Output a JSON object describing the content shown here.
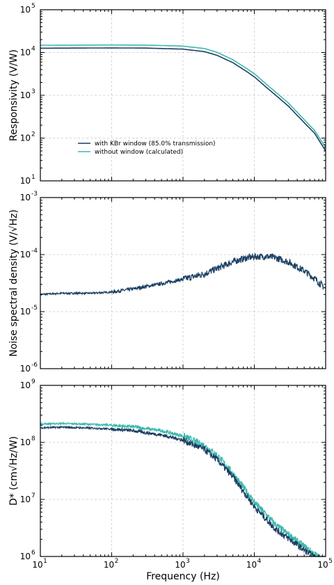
{
  "colors": {
    "dark": "#1b3f63",
    "teal": "#3cb8ac"
  },
  "xlabel": "Frequency (Hz)",
  "chart_data": [
    {
      "type": "line",
      "id": "responsivity",
      "ylabel": "Responsivity (V/W)",
      "xscale": "log",
      "yscale": "log",
      "xlim": [
        10,
        100000
      ],
      "ylim": [
        10,
        100000
      ],
      "grid": true,
      "legend_position": "lower-left",
      "series": [
        {
          "name": "with KBr window (85.0% transmission)",
          "color": "dark",
          "x": [
            10,
            100,
            300,
            1000,
            2000,
            3000,
            5000,
            8000,
            10000,
            15000,
            20000,
            30000,
            50000,
            70000,
            100000
          ],
          "y": [
            12600,
            12800,
            12700,
            12000,
            10500,
            8600,
            5800,
            3500,
            2700,
            1500,
            1000,
            560,
            230,
            130,
            50
          ]
        },
        {
          "name": "without window (calculated)",
          "color": "teal",
          "x": [
            10,
            100,
            300,
            1000,
            2000,
            3000,
            5000,
            8000,
            10000,
            15000,
            20000,
            30000,
            50000,
            70000,
            100000
          ],
          "y": [
            14800,
            15000,
            14900,
            14100,
            12400,
            10100,
            6800,
            4100,
            3200,
            1770,
            1180,
            660,
            270,
            150,
            60
          ]
        }
      ]
    },
    {
      "type": "line",
      "id": "noise",
      "ylabel": "Noise spectral density (V/√Hz)",
      "xscale": "log",
      "yscale": "log",
      "xlim": [
        10,
        100000
      ],
      "ylim": [
        1e-06,
        0.001
      ],
      "grid": true,
      "series": [
        {
          "name": "",
          "color": "dark",
          "x": [
            10,
            20,
            30,
            50,
            100,
            200,
            500,
            1000,
            2000,
            3000,
            5000,
            8000,
            10000,
            15000,
            20000,
            30000,
            50000,
            70000,
            100000
          ],
          "y": [
            2e-05,
            2.1e-05,
            2.1e-05,
            2.1e-05,
            2.2e-05,
            2.5e-05,
            3.1e-05,
            3.7e-05,
            4.6e-05,
            5.7e-05,
            7.5e-05,
            8.8e-05,
            9.2e-05,
            9.3e-05,
            8.8e-05,
            7.4e-05,
            5.2e-05,
            3.8e-05,
            2.5e-05
          ]
        }
      ]
    },
    {
      "type": "line",
      "id": "detectivity",
      "ylabel": "D* (cm√Hz/W)",
      "xscale": "log",
      "yscale": "log",
      "xlim": [
        10,
        100000
      ],
      "ylim": [
        1000000,
        1000000000
      ],
      "grid": true,
      "series": [
        {
          "name": "with KBr window (85.0% transmission)",
          "color": "dark",
          "x": [
            10,
            20,
            50,
            100,
            200,
            500,
            1000,
            2000,
            3000,
            5000,
            10000,
            20000,
            50000,
            100000
          ],
          "y": [
            180000000,
            185000000,
            178000000,
            172000000,
            160000000,
            135000000,
            110000000,
            75000000,
            50000000,
            25000000,
            7500000,
            3000000,
            1300000,
            700000
          ]
        },
        {
          "name": "without window (calculated)",
          "color": "teal",
          "x": [
            10,
            20,
            50,
            100,
            200,
            500,
            1000,
            2000,
            3000,
            5000,
            10000,
            20000,
            50000,
            100000
          ],
          "y": [
            210000000,
            215000000,
            208000000,
            200000000,
            188000000,
            160000000,
            130000000,
            88000000,
            60000000,
            29000000,
            9000000,
            3600000,
            1500000,
            800000
          ]
        }
      ]
    }
  ]
}
